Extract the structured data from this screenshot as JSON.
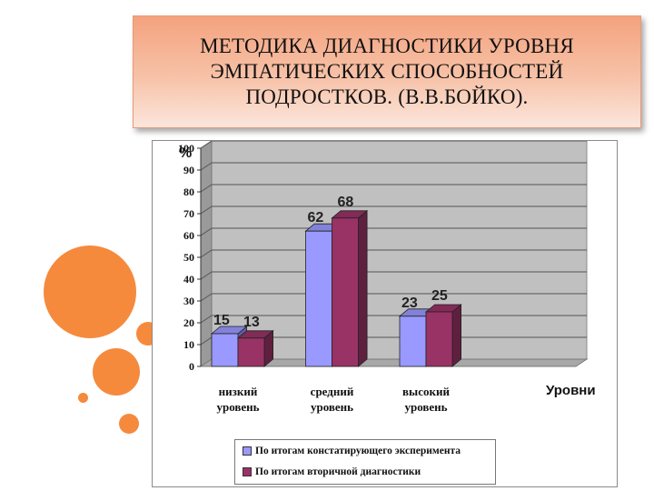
{
  "slide": {
    "title": "МЕТОДИКА ДИАГНОСТИКИ УРОВНЯ\nЭМПАТИЧЕСКИХ СПОСОБНОСТЕЙ\nПОДРОСТКОВ. (В.В.БОЙКО).",
    "accent_color": "#f58a3d",
    "title_gradient": [
      "#f4a27e",
      "#fbe6dc"
    ]
  },
  "chart_data": {
    "type": "bar",
    "title": "",
    "ylabel": "%",
    "xlabel": "Уровни",
    "ylim": [
      0,
      100
    ],
    "yticks": [
      0,
      10,
      20,
      30,
      40,
      50,
      60,
      70,
      80,
      90,
      100
    ],
    "categories": [
      [
        "низкий",
        "уровень"
      ],
      [
        "средний",
        "уровень"
      ],
      [
        "высокий",
        "уровень"
      ]
    ],
    "series": [
      {
        "name": "По итогам констатирующего эксперимента",
        "values": [
          15,
          62,
          23
        ],
        "color": "#9999ff"
      },
      {
        "name": "По итогам вторичной диагностики",
        "values": [
          13,
          68,
          25
        ],
        "color": "#993366"
      }
    ],
    "grid": true,
    "legend_position": "bottom",
    "data_labels": true
  }
}
